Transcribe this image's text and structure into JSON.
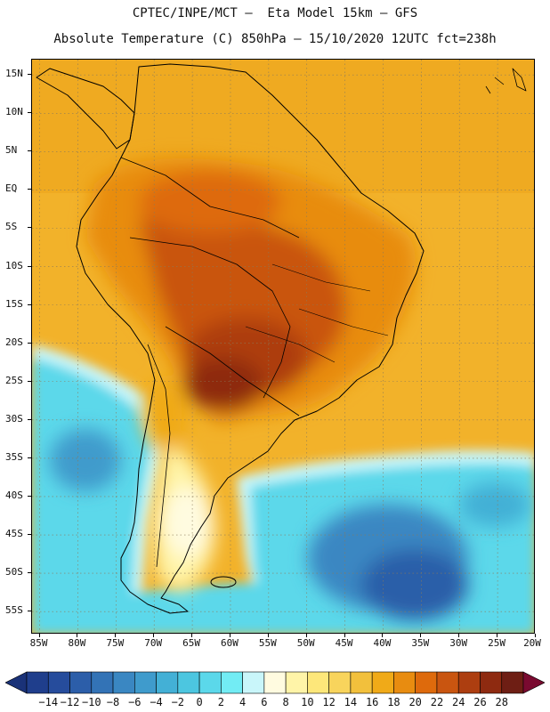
{
  "title": {
    "line1": "CPTEC/INPE/MCT –  Eta Model 15km – GFS",
    "line2": "Absolute Temperature (C) 850hPa – 15/10/2020 12UTC fct=238h"
  },
  "map": {
    "region": "South America",
    "variable": "Absolute Temperature (C) 850hPa",
    "lat_range": [
      -58,
      17
    ],
    "lon_range": [
      -86,
      -20
    ],
    "lat_labels": [
      {
        "lat": 15,
        "label": "15N"
      },
      {
        "lat": 10,
        "label": "10N"
      },
      {
        "lat": 5,
        "label": "5N"
      },
      {
        "lat": 0,
        "label": "EQ"
      },
      {
        "lat": -5,
        "label": "5S"
      },
      {
        "lat": -10,
        "label": "10S"
      },
      {
        "lat": -15,
        "label": "15S"
      },
      {
        "lat": -20,
        "label": "20S"
      },
      {
        "lat": -25,
        "label": "25S"
      },
      {
        "lat": -30,
        "label": "30S"
      },
      {
        "lat": -35,
        "label": "35S"
      },
      {
        "lat": -40,
        "label": "40S"
      },
      {
        "lat": -45,
        "label": "45S"
      },
      {
        "lat": -50,
        "label": "50S"
      },
      {
        "lat": -55,
        "label": "55S"
      }
    ],
    "lon_labels": [
      {
        "lon": -85,
        "label": "85W"
      },
      {
        "lon": -80,
        "label": "80W"
      },
      {
        "lon": -75,
        "label": "75W"
      },
      {
        "lon": -70,
        "label": "70W"
      },
      {
        "lon": -65,
        "label": "65W"
      },
      {
        "lon": -60,
        "label": "60W"
      },
      {
        "lon": -55,
        "label": "55W"
      },
      {
        "lon": -50,
        "label": "50W"
      },
      {
        "lon": -45,
        "label": "45W"
      },
      {
        "lon": -40,
        "label": "40W"
      },
      {
        "lon": -35,
        "label": "35W"
      },
      {
        "lon": -30,
        "label": "30W"
      },
      {
        "lon": -25,
        "label": "25W"
      },
      {
        "lon": -20,
        "label": "20W"
      }
    ],
    "grid": "dotted"
  },
  "colorbar": {
    "levels": [
      -14,
      -12,
      -10,
      -8,
      -6,
      -4,
      -2,
      0,
      2,
      4,
      6,
      8,
      10,
      12,
      14,
      16,
      18,
      20,
      22,
      24,
      26,
      28
    ],
    "labels": [
      "−14",
      "−12",
      "−10",
      "−8",
      "−6",
      "−4",
      "−2",
      "0",
      "2",
      "4",
      "6",
      "8",
      "10",
      "12",
      "14",
      "16",
      "18",
      "20",
      "22",
      "24",
      "26",
      "28"
    ],
    "colors": [
      "#1f3e8c",
      "#264c9c",
      "#2c5ea9",
      "#3373b6",
      "#3a87c2",
      "#3f9bcc",
      "#43b0d6",
      "#4cc6e0",
      "#5bd8ea",
      "#72ecf4",
      "#c9f6fa",
      "#fffbe0",
      "#fff4a8",
      "#fde77a",
      "#f8d45c",
      "#f2c03c",
      "#f0aa18",
      "#e88c10",
      "#de6a0c",
      "#c95510",
      "#ad3e10",
      "#8e2a10",
      "#6e1e14"
    ],
    "under_color": "#1a3278",
    "over_color": "#7a0a30"
  },
  "palette": {
    "warm_ocean": "#f2b22a",
    "land_orange": "#e88c10",
    "land_hot": "#b8400e",
    "land_hottest": "#8e2a10",
    "cold_ocean": "#4cc6e0",
    "cold_deep": "#2c6fb3",
    "cool_light": "#c9f6fa",
    "pale_yellow": "#fff4a8"
  }
}
